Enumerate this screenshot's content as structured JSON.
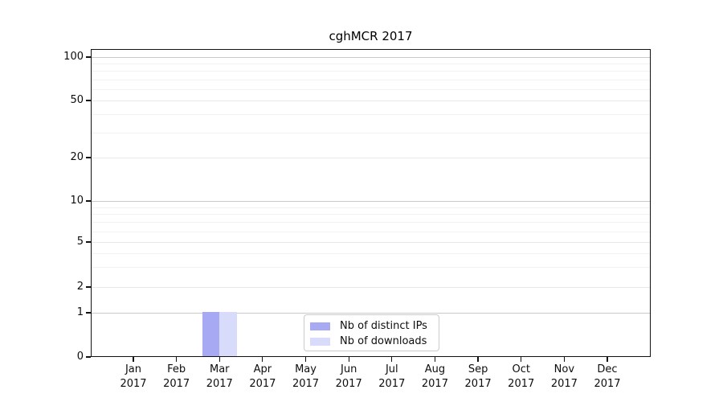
{
  "title": "cghMCR 2017",
  "chart_data": {
    "type": "bar",
    "title": "cghMCR 2017",
    "categories": [
      "Jan 2017",
      "Feb 2017",
      "Mar 2017",
      "Apr 2017",
      "May 2017",
      "Jun 2017",
      "Jul 2017",
      "Aug 2017",
      "Sep 2017",
      "Oct 2017",
      "Nov 2017",
      "Dec 2017"
    ],
    "series": [
      {
        "name": "Nb of distinct IPs",
        "color": "#a8a9f3",
        "values": [
          0,
          0,
          1,
          0,
          0,
          0,
          0,
          0,
          0,
          0,
          0,
          0
        ]
      },
      {
        "name": "Nb of downloads",
        "color": "#d8dcfa",
        "values": [
          0,
          0,
          1,
          0,
          0,
          0,
          0,
          0,
          0,
          0,
          0,
          0
        ]
      }
    ],
    "y_ticks": [
      0,
      1,
      2,
      5,
      10,
      20,
      50,
      100
    ],
    "ylim": [
      0,
      120
    ],
    "yscale": "log-like",
    "xlabel": "",
    "ylabel": "",
    "grid": true,
    "legend_position": "inside-bottom-center",
    "colors": {
      "grid_major": "#c9c9c9",
      "grid_labeled": "#e9e9e9",
      "grid_minor": "#f2f2f2",
      "axis": "#111111"
    }
  }
}
